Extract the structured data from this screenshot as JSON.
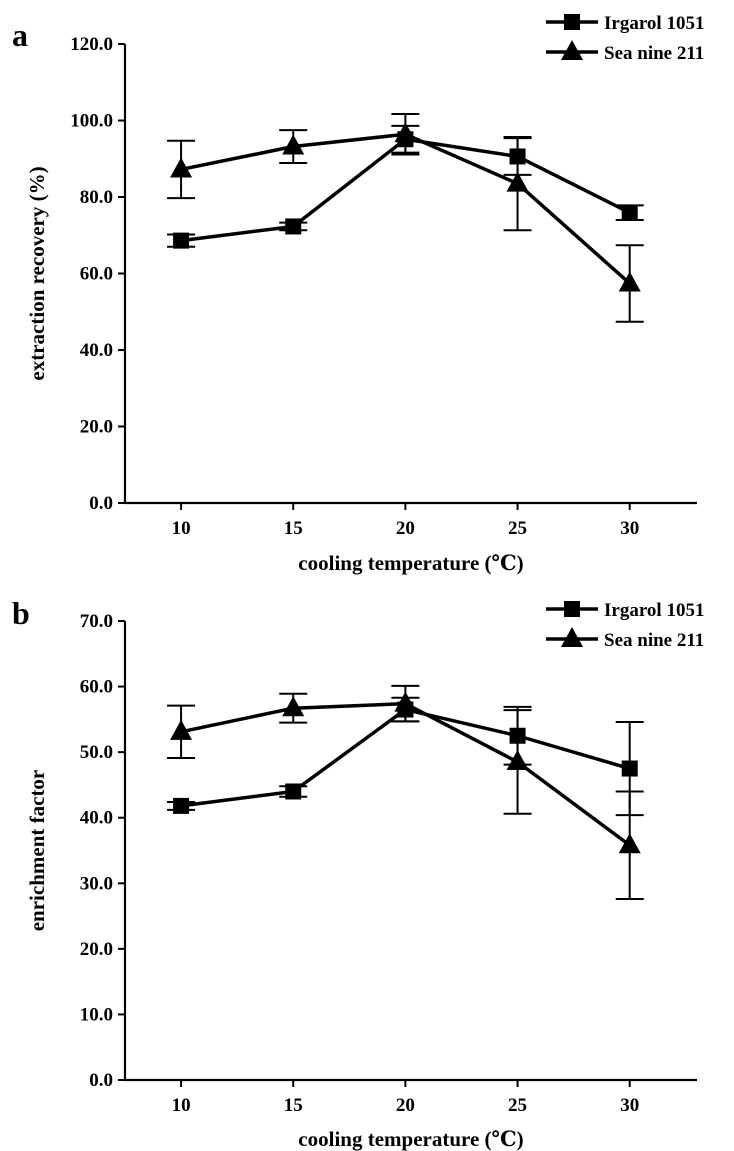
{
  "chart_data": [
    {
      "type": "line",
      "panel_label": "a",
      "xlabel": "cooling temperature (℃)",
      "ylabel": "extraction recovery (%)",
      "x": [
        10,
        15,
        20,
        25,
        30
      ],
      "x_ticks": [
        "10",
        "15",
        "20",
        "25",
        "30"
      ],
      "xlim": [
        7.5,
        33
      ],
      "ylim": [
        0,
        120
      ],
      "y_ticks": [
        "0.0",
        "20.0",
        "40.0",
        "60.0",
        "80.0",
        "100.0",
        "120.0"
      ],
      "grid": false,
      "legend_position": "top-right",
      "series": [
        {
          "name": "Irgarol 1051",
          "marker": "square",
          "values": [
            68.6,
            72.3,
            95.1,
            90.6,
            75.9
          ],
          "errors": [
            1.6,
            1.0,
            3.5,
            4.8,
            1.9
          ]
        },
        {
          "name": "Sea nine 211",
          "marker": "triangle",
          "values": [
            87.2,
            93.2,
            96.4,
            83.5,
            57.4
          ],
          "errors": [
            7.5,
            4.3,
            5.3,
            12.2,
            10.0
          ]
        }
      ]
    },
    {
      "type": "line",
      "panel_label": "b",
      "xlabel": "cooling temperature (℃)",
      "ylabel": "enrichment factor",
      "x": [
        10,
        15,
        20,
        25,
        30
      ],
      "x_ticks": [
        "10",
        "15",
        "20",
        "25",
        "30"
      ],
      "xlim": [
        7.5,
        33
      ],
      "ylim": [
        0,
        70
      ],
      "y_ticks": [
        "0.0",
        "10.0",
        "20.0",
        "30.0",
        "40.0",
        "50.0",
        "60.0",
        "70.0"
      ],
      "grid": false,
      "legend_position": "top-right",
      "series": [
        {
          "name": "Irgarol 1051",
          "marker": "square",
          "values": [
            41.8,
            44.0,
            56.5,
            52.5,
            47.5
          ],
          "errors": [
            0.6,
            0.8,
            1.8,
            4.4,
            7.1
          ]
        },
        {
          "name": "Sea nine 211",
          "marker": "triangle",
          "values": [
            53.1,
            56.7,
            57.4,
            48.5,
            35.8
          ],
          "errors": [
            4.0,
            2.2,
            2.7,
            7.9,
            8.2
          ]
        }
      ]
    }
  ]
}
